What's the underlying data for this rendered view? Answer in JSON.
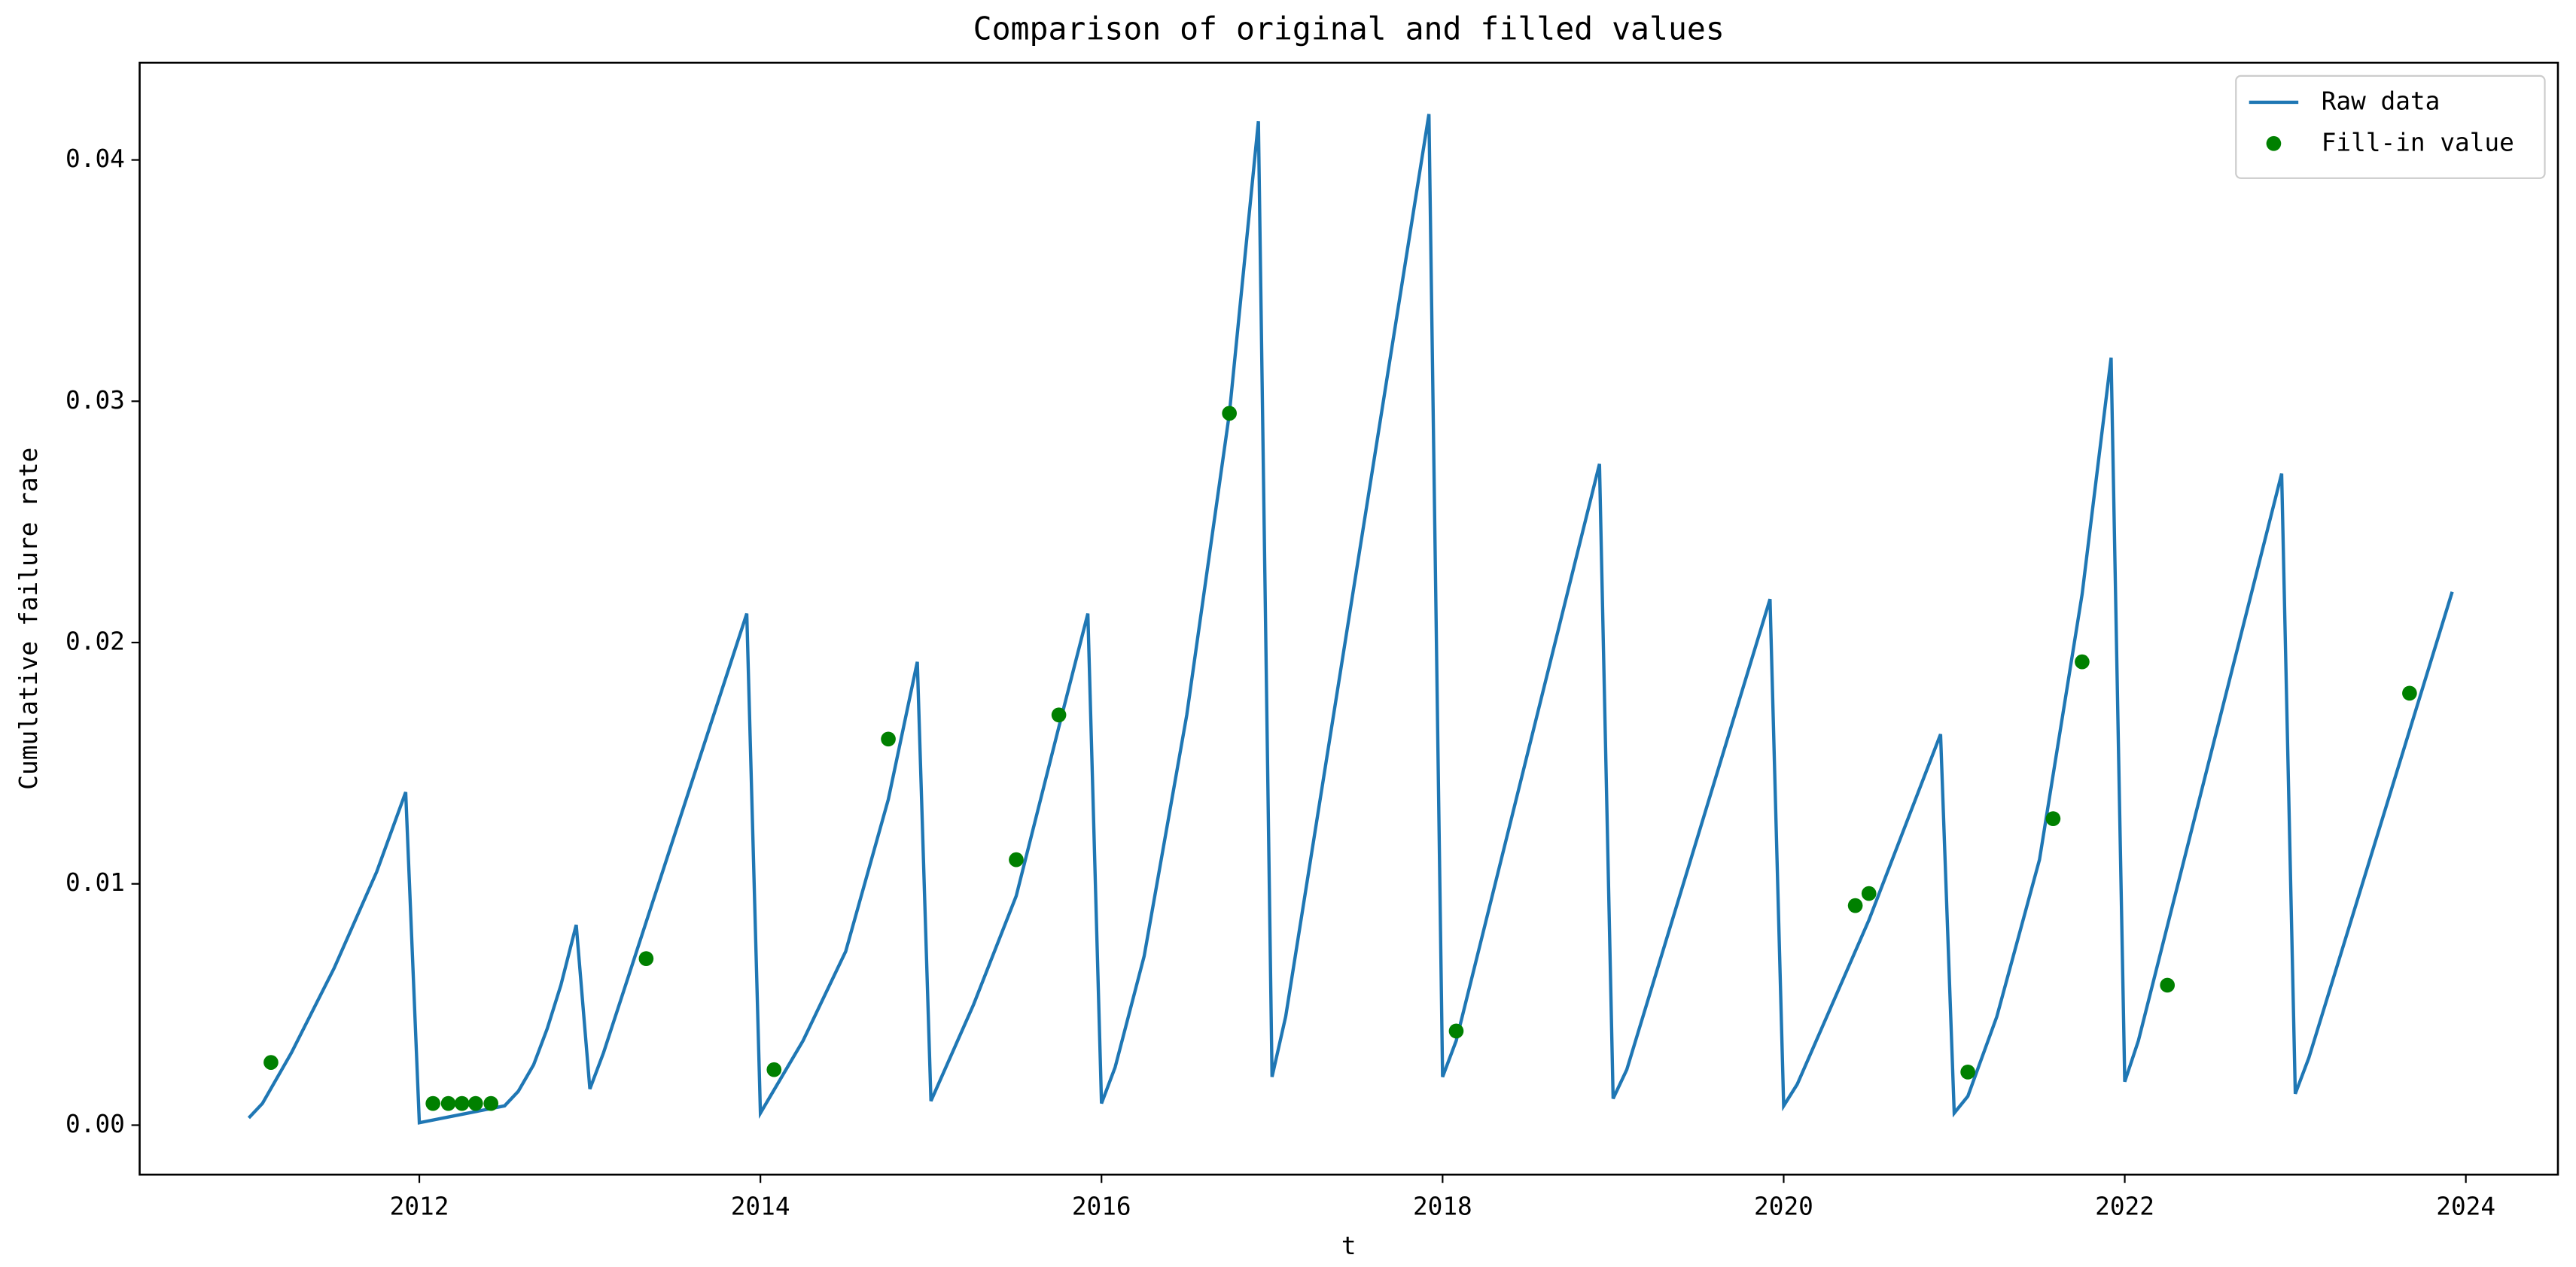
{
  "chart_data": {
    "type": "line",
    "title": "Comparison of original and filled values",
    "xlabel": "t",
    "ylabel": "Cumulative failure rate",
    "xlim": [
      2010.36,
      2024.54
    ],
    "xticks": [
      2012,
      2014,
      2016,
      2018,
      2020,
      2022,
      2024
    ],
    "ylim": [
      -0.00205,
      0.04403
    ],
    "yticks": [
      {
        "value": 0,
        "label": "0.00"
      },
      {
        "value": 0.01,
        "label": "0.01"
      },
      {
        "value": 0.02,
        "label": "0.02"
      },
      {
        "value": 0.03,
        "label": "0.03"
      },
      {
        "value": 0.04,
        "label": "0.04"
      }
    ],
    "legend": "upper right",
    "series": [
      {
        "name": "Raw data",
        "style": "line",
        "color": "#1f77b4",
        "x": [
          2011.0,
          2011.08,
          2011.25,
          2011.5,
          2011.75,
          2011.92,
          2012.0,
          2012.5,
          2012.58,
          2012.67,
          2012.75,
          2012.83,
          2012.92,
          2013.0,
          2013.08,
          2013.92,
          2014.0,
          2014.25,
          2014.5,
          2014.75,
          2014.92,
          2015.0,
          2015.25,
          2015.5,
          2015.75,
          2015.92,
          2016.0,
          2016.08,
          2016.25,
          2016.5,
          2016.75,
          2016.92,
          2017.0,
          2017.08,
          2017.92,
          2018.0,
          2018.08,
          2018.92,
          2019.0,
          2019.08,
          2019.92,
          2020.0,
          2020.08,
          2020.5,
          2020.92,
          2021.0,
          2021.08,
          2021.25,
          2021.5,
          2021.75,
          2021.92,
          2022.0,
          2022.08,
          2022.92,
          2023.0,
          2023.08,
          2023.92
        ],
        "values": [
          0.0003,
          0.0009,
          0.003,
          0.0065,
          0.0105,
          0.0138,
          0.0001,
          0.0008,
          0.0014,
          0.0025,
          0.004,
          0.0058,
          0.0083,
          0.0015,
          0.003,
          0.0212,
          0.0005,
          0.0035,
          0.0072,
          0.0135,
          0.0192,
          0.001,
          0.005,
          0.0095,
          0.0165,
          0.0212,
          0.0009,
          0.0024,
          0.007,
          0.017,
          0.0295,
          0.0416,
          0.002,
          0.0045,
          0.0419,
          0.002,
          0.0035,
          0.0274,
          0.0011,
          0.0023,
          0.0218,
          0.0008,
          0.0017,
          0.0085,
          0.0162,
          0.0005,
          0.0012,
          0.0045,
          0.011,
          0.022,
          0.0318,
          0.0018,
          0.0035,
          0.027,
          0.0013,
          0.0028,
          0.0221
        ]
      },
      {
        "name": "Fill-in value",
        "style": "scatter",
        "color": "#008000",
        "x": [
          2011.13,
          2012.08,
          2012.17,
          2012.25,
          2012.33,
          2012.42,
          2013.33,
          2014.08,
          2014.75,
          2015.5,
          2015.75,
          2016.75,
          2018.08,
          2020.42,
          2020.5,
          2021.08,
          2021.58,
          2021.75,
          2022.25,
          2023.67
        ],
        "values": [
          0.0026,
          0.0009,
          0.0009,
          0.0009,
          0.0009,
          0.0009,
          0.0069,
          0.0023,
          0.016,
          0.011,
          0.017,
          0.0295,
          0.0039,
          0.0091,
          0.0096,
          0.0022,
          0.0127,
          0.0192,
          0.0058,
          0.0179
        ]
      }
    ]
  }
}
